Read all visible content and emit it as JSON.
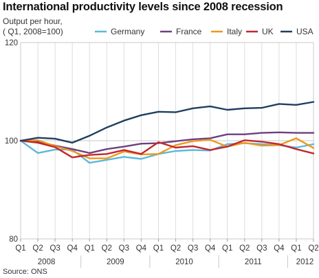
{
  "title": "International productivity levels since 2008 recession",
  "subtitle_line1": "Output per hour,",
  "subtitle_line2": "( Q1, 2008=100)",
  "source": "Source: ONS",
  "chart_data": {
    "type": "line",
    "title": "International productivity levels since 2008 recession",
    "ylabel": "Output per hour, ( Q1, 2008=100)",
    "ylim": [
      80,
      120
    ],
    "yticks": [
      80,
      100,
      120
    ],
    "grid": true,
    "legend_position": "top",
    "x_quarters": [
      "Q1",
      "Q2",
      "Q3",
      "Q4",
      "Q1",
      "Q2",
      "Q3",
      "Q4",
      "Q1",
      "Q2",
      "Q3",
      "Q4",
      "Q1",
      "Q2",
      "Q3",
      "Q4",
      "Q1",
      "Q2"
    ],
    "x_years": [
      {
        "label": "2008",
        "start": 0,
        "end": 3
      },
      {
        "label": "2009",
        "start": 4,
        "end": 7
      },
      {
        "label": "2010",
        "start": 8,
        "end": 11
      },
      {
        "label": "2011",
        "start": 12,
        "end": 15
      },
      {
        "label": "2012",
        "start": 16,
        "end": 17
      }
    ],
    "series": [
      {
        "name": "Germany",
        "color": "#5bb8dc",
        "values": [
          100,
          97.5,
          98.2,
          98.2,
          95.5,
          96.1,
          96.7,
          96.3,
          97.3,
          97.9,
          98.1,
          98.0,
          99.3,
          99.5,
          99.3,
          99.1,
          98.6,
          99.3
        ]
      },
      {
        "name": "France",
        "color": "#6e3f7f",
        "values": [
          100,
          99.8,
          99.0,
          98.3,
          97.5,
          98.3,
          98.8,
          99.4,
          99.5,
          99.9,
          100.3,
          100.5,
          101.3,
          101.3,
          101.6,
          101.7,
          101.6,
          101.6
        ]
      },
      {
        "name": "Italy",
        "color": "#f0981c",
        "values": [
          100,
          100.1,
          98.9,
          97.9,
          96.4,
          96.4,
          97.8,
          97.2,
          97.3,
          99.1,
          99.9,
          100.2,
          98.8,
          99.6,
          99.0,
          99.1,
          100.5,
          98.5
        ]
      },
      {
        "name": "UK",
        "color": "#c3272b",
        "values": [
          100,
          99.6,
          98.7,
          96.6,
          97.1,
          97.3,
          98.1,
          97.3,
          99.7,
          98.6,
          98.9,
          98.1,
          98.8,
          100.1,
          99.8,
          99.3,
          98.3,
          97.4
        ]
      },
      {
        "name": "USA",
        "color": "#1d3f5f",
        "values": [
          100,
          100.6,
          100.4,
          99.6,
          101.0,
          102.7,
          104.1,
          105.2,
          105.9,
          105.8,
          106.6,
          107.0,
          106.3,
          106.6,
          106.7,
          107.5,
          107.3,
          107.9
        ]
      }
    ]
  }
}
